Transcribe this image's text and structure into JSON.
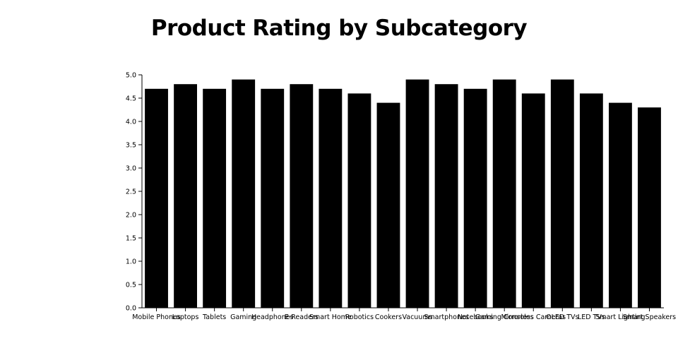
{
  "chart_data": {
    "type": "bar",
    "title": "Product Rating by Subcategory",
    "xlabel": "",
    "ylabel": "",
    "categories": [
      "Mobile Phones",
      "Laptops",
      "Tablets",
      "Gaming",
      "Headphones",
      "E-Readers",
      "Smart Home",
      "Robotics",
      "Cookers",
      "Vacuums",
      "Smartphones",
      "Notebooks",
      "Gaming Consoles",
      "Mirrorless Cameras",
      "OLED TVs",
      "LED TVs",
      "Smart Lighting",
      "Smart Speakers"
    ],
    "values": [
      4.7,
      4.8,
      4.7,
      4.9,
      4.7,
      4.8,
      4.7,
      4.6,
      4.4,
      4.9,
      4.8,
      4.7,
      4.9,
      4.6,
      4.9,
      4.6,
      4.4,
      4.3
    ],
    "ylim": [
      0,
      5
    ],
    "yticks": [
      0.0,
      0.5,
      1.0,
      1.5,
      2.0,
      2.5,
      3.0,
      3.5,
      4.0,
      4.5,
      5.0
    ],
    "bar_color": "#000000",
    "grid": false,
    "legend": "none"
  }
}
